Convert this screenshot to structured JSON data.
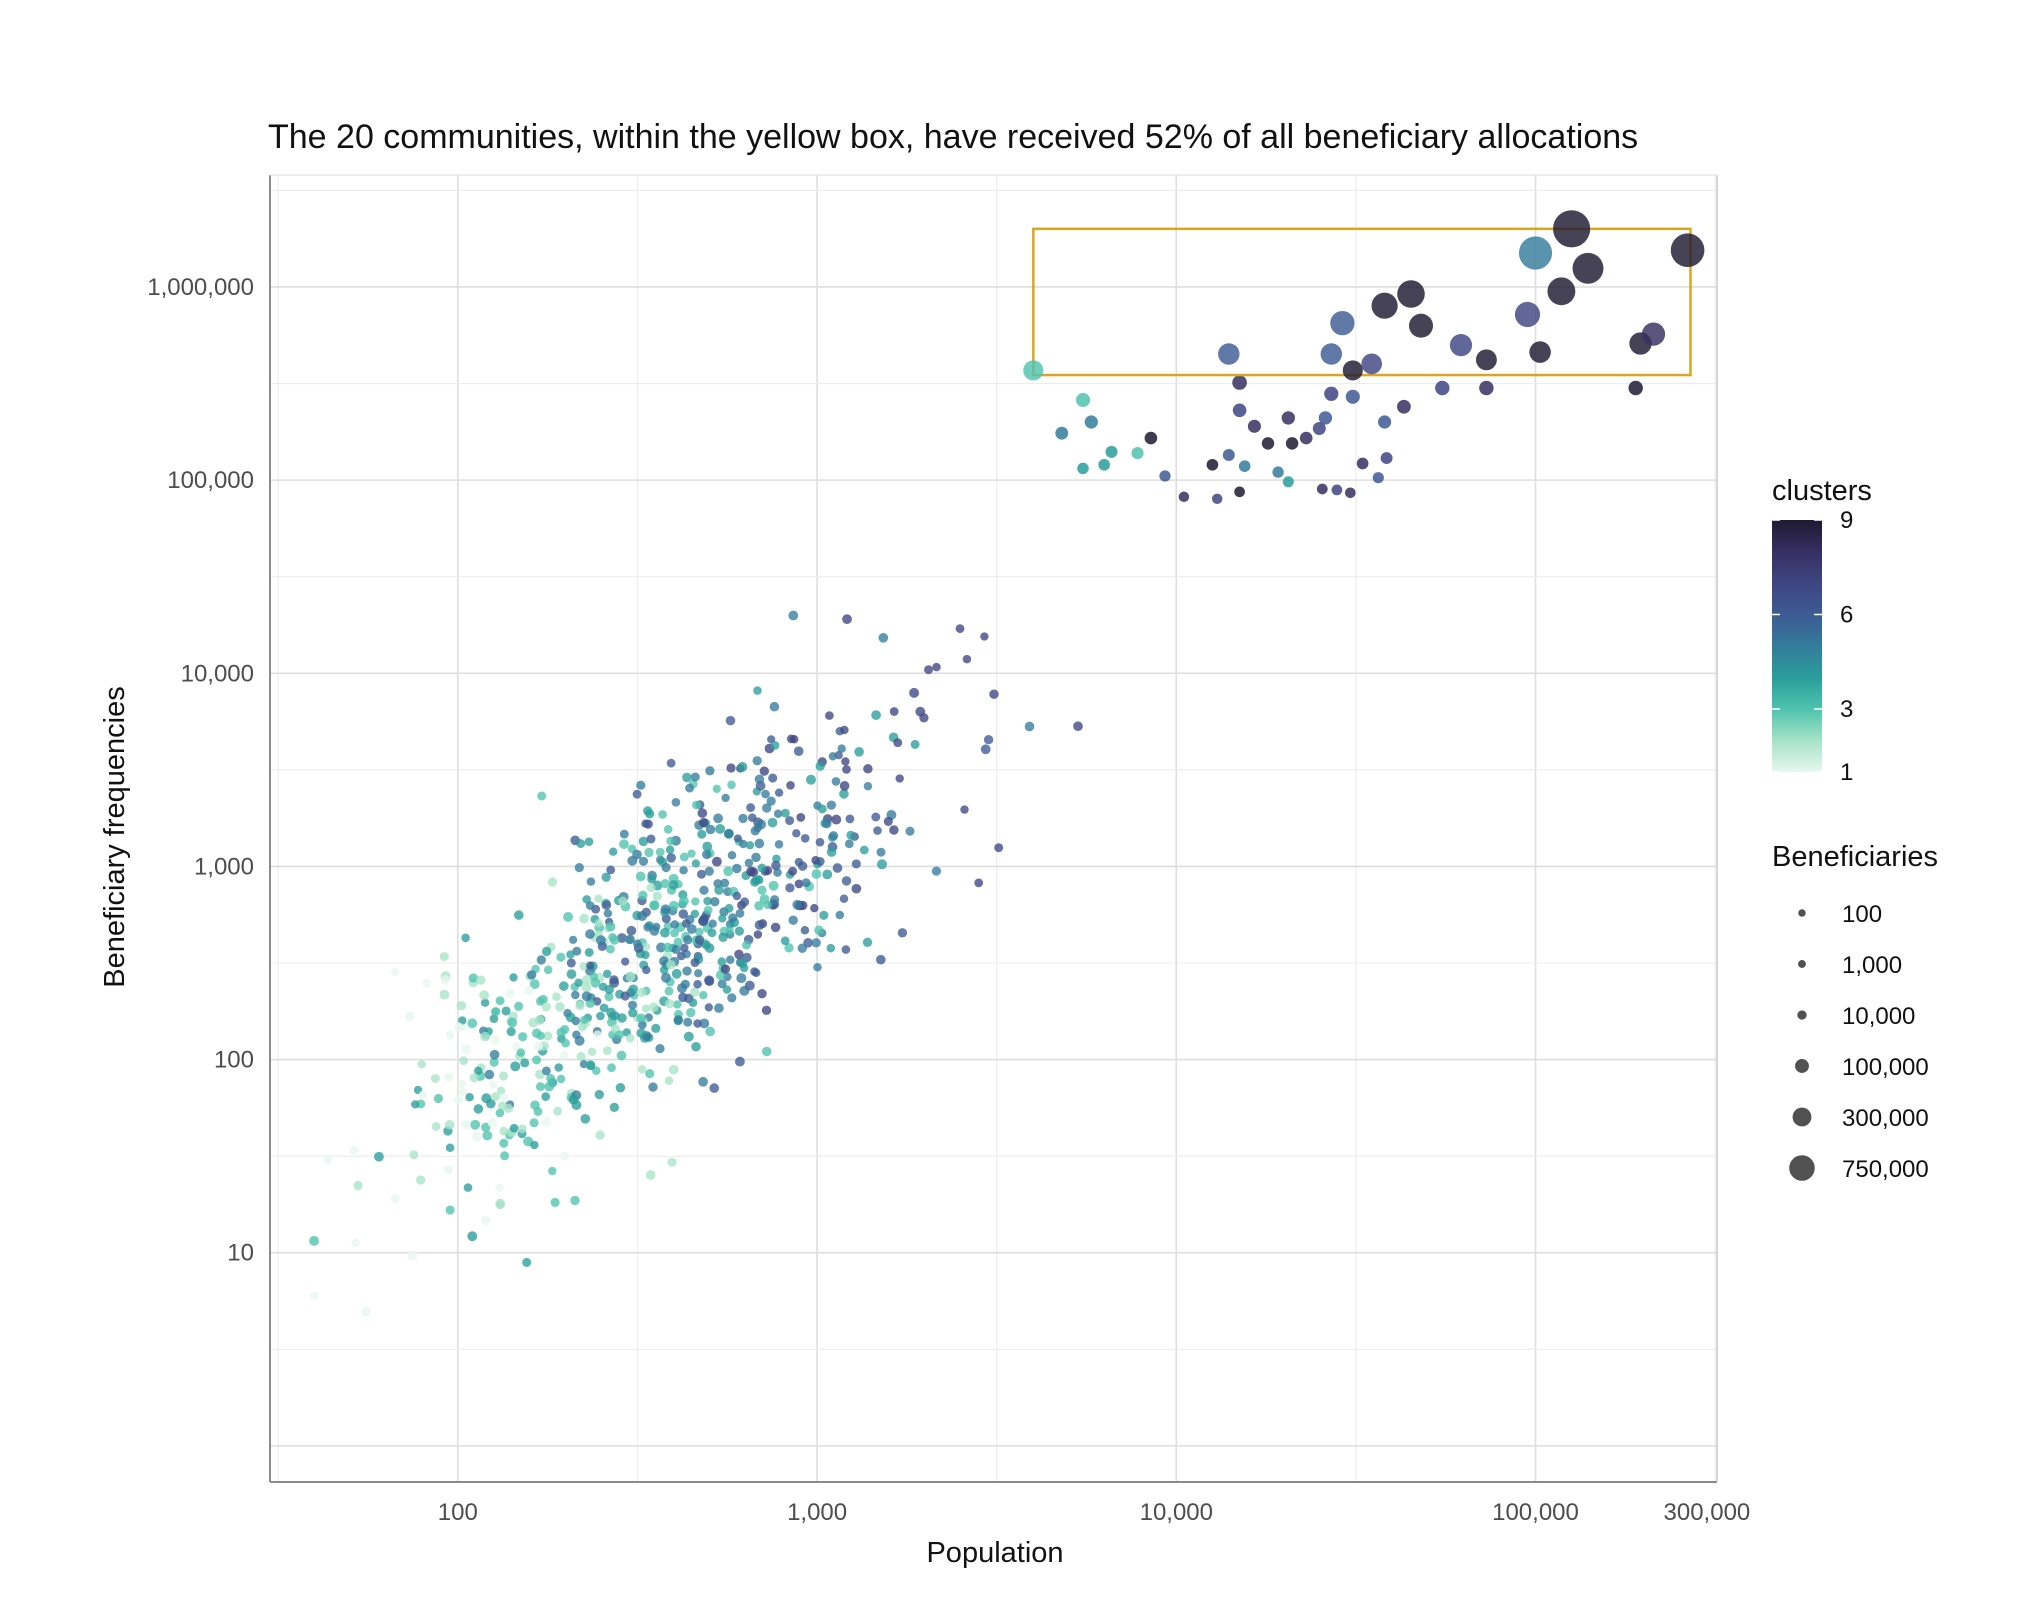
{
  "chart_data": {
    "type": "scatter",
    "title": "The 20 communities, within the yellow box, have received 52% of all beneficiary allocations",
    "xlabel": "Population",
    "ylabel": "Beneficiary frequencies",
    "x_scale": "log10",
    "y_scale": "log10",
    "xlim": [
      30,
      320000
    ],
    "ylim": [
      0.65,
      3800000
    ],
    "x_ticks": [
      100,
      1000,
      10000,
      100000,
      300000
    ],
    "x_tick_labels": [
      "100",
      "1,000",
      "10,000",
      "100,000",
      "300,000"
    ],
    "y_ticks": [
      10,
      100,
      1000,
      10000,
      100000,
      1000000
    ],
    "y_tick_labels": [
      "10",
      "100",
      "1,000",
      "10,000",
      "100,000",
      "1,000,000"
    ],
    "grid": true,
    "highlight_box": {
      "x": [
        4000,
        270000
      ],
      "y": [
        350000,
        2000000
      ],
      "color": "#DAA520"
    },
    "color_legend": {
      "title": "clusters",
      "min": 1,
      "max": 9,
      "ticks": [
        1,
        3,
        6,
        9
      ],
      "colors": [
        "#e6f7ee",
        "#a6e3c8",
        "#4fc3ae",
        "#2a9d9a",
        "#347b9c",
        "#3d5b94",
        "#3e4582",
        "#372f62",
        "#1e1a31"
      ]
    },
    "size_legend": {
      "title": "Beneficiaries",
      "values": [
        100,
        1000,
        10000,
        100000,
        300000,
        750000
      ],
      "labels": [
        "100",
        "1,000",
        "10,000",
        "100,000",
        "300,000",
        "750,000"
      ]
    },
    "highlighted_points": [
      {
        "x": 4000,
        "y": 370000,
        "cluster": 3,
        "beneficiaries": 370000
      },
      {
        "x": 14000,
        "y": 450000,
        "cluster": 6,
        "beneficiaries": 450000
      },
      {
        "x": 27000,
        "y": 450000,
        "cluster": 6,
        "beneficiaries": 450000
      },
      {
        "x": 29000,
        "y": 650000,
        "cluster": 6,
        "beneficiaries": 650000
      },
      {
        "x": 31000,
        "y": 370000,
        "cluster": 9,
        "beneficiaries": 370000
      },
      {
        "x": 35000,
        "y": 400000,
        "cluster": 7,
        "beneficiaries": 400000
      },
      {
        "x": 38000,
        "y": 800000,
        "cluster": 9,
        "beneficiaries": 800000
      },
      {
        "x": 45000,
        "y": 920000,
        "cluster": 9,
        "beneficiaries": 920000
      },
      {
        "x": 48000,
        "y": 630000,
        "cluster": 9,
        "beneficiaries": 630000
      },
      {
        "x": 62000,
        "y": 500000,
        "cluster": 7,
        "beneficiaries": 500000
      },
      {
        "x": 73000,
        "y": 420000,
        "cluster": 9,
        "beneficiaries": 420000
      },
      {
        "x": 95000,
        "y": 720000,
        "cluster": 7,
        "beneficiaries": 720000
      },
      {
        "x": 100000,
        "y": 1500000,
        "cluster": 5,
        "beneficiaries": 1500000
      },
      {
        "x": 103000,
        "y": 460000,
        "cluster": 9,
        "beneficiaries": 460000
      },
      {
        "x": 118000,
        "y": 950000,
        "cluster": 9,
        "beneficiaries": 950000
      },
      {
        "x": 126000,
        "y": 2000000,
        "cluster": 9,
        "beneficiaries": 2000000
      },
      {
        "x": 140000,
        "y": 1250000,
        "cluster": 9,
        "beneficiaries": 1250000
      },
      {
        "x": 196000,
        "y": 510000,
        "cluster": 9,
        "beneficiaries": 510000
      },
      {
        "x": 213000,
        "y": 570000,
        "cluster": 8,
        "beneficiaries": 570000
      },
      {
        "x": 265000,
        "y": 1550000,
        "cluster": 9,
        "beneficiaries": 1550000
      }
    ],
    "mid_points": [
      {
        "x": 5500,
        "y": 260000,
        "cluster": 3
      },
      {
        "x": 8500,
        "y": 165000,
        "cluster": 9
      },
      {
        "x": 15000,
        "y": 320000,
        "cluster": 8
      },
      {
        "x": 15000,
        "y": 230000,
        "cluster": 7
      },
      {
        "x": 16500,
        "y": 190000,
        "cluster": 8
      },
      {
        "x": 18000,
        "y": 155000,
        "cluster": 9
      },
      {
        "x": 20500,
        "y": 210000,
        "cluster": 8
      },
      {
        "x": 21000,
        "y": 155000,
        "cluster": 9
      },
      {
        "x": 23000,
        "y": 165000,
        "cluster": 8
      },
      {
        "x": 25000,
        "y": 185000,
        "cluster": 7
      },
      {
        "x": 26000,
        "y": 210000,
        "cluster": 6
      },
      {
        "x": 27000,
        "y": 280000,
        "cluster": 7
      },
      {
        "x": 31000,
        "y": 270000,
        "cluster": 6
      },
      {
        "x": 38000,
        "y": 200000,
        "cluster": 6
      },
      {
        "x": 43000,
        "y": 240000,
        "cluster": 8
      },
      {
        "x": 55000,
        "y": 300000,
        "cluster": 7
      },
      {
        "x": 73000,
        "y": 300000,
        "cluster": 8
      },
      {
        "x": 190000,
        "y": 300000,
        "cluster": 9
      },
      {
        "x": 4800,
        "y": 175000,
        "cluster": 5
      },
      {
        "x": 5800,
        "y": 200000,
        "cluster": 5
      },
      {
        "x": 5500,
        "y": 115000,
        "cluster": 4
      },
      {
        "x": 6300,
        "y": 120000,
        "cluster": 4
      },
      {
        "x": 6600,
        "y": 140000,
        "cluster": 4
      },
      {
        "x": 7800,
        "y": 138000,
        "cluster": 3
      },
      {
        "x": 9300,
        "y": 105000,
        "cluster": 6
      },
      {
        "x": 12600,
        "y": 120000,
        "cluster": 9
      },
      {
        "x": 14000,
        "y": 135000,
        "cluster": 6
      },
      {
        "x": 15500,
        "y": 118000,
        "cluster": 5
      },
      {
        "x": 15000,
        "y": 87000,
        "cluster": 9
      },
      {
        "x": 19200,
        "y": 110000,
        "cluster": 5
      },
      {
        "x": 20500,
        "y": 98000,
        "cluster": 4
      },
      {
        "x": 25500,
        "y": 90000,
        "cluster": 8
      },
      {
        "x": 28000,
        "y": 89000,
        "cluster": 7
      },
      {
        "x": 30500,
        "y": 86000,
        "cluster": 8
      },
      {
        "x": 33000,
        "y": 122000,
        "cluster": 8
      },
      {
        "x": 38500,
        "y": 130000,
        "cluster": 7
      },
      {
        "x": 36500,
        "y": 103000,
        "cluster": 6
      },
      {
        "x": 13000,
        "y": 80000,
        "cluster": 7
      },
      {
        "x": 10500,
        "y": 82000,
        "cluster": 8
      }
    ]
  }
}
